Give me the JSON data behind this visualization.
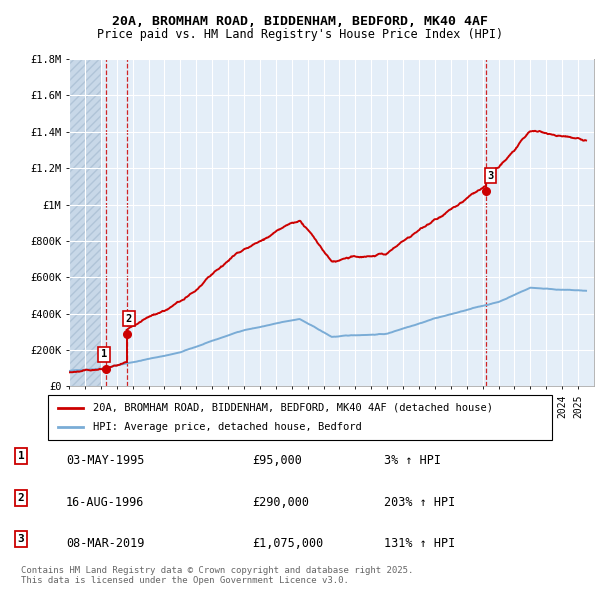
{
  "title_line1": "20A, BROMHAM ROAD, BIDDENHAM, BEDFORD, MK40 4AF",
  "title_line2": "Price paid vs. HM Land Registry's House Price Index (HPI)",
  "hpi_label": "HPI: Average price, detached house, Bedford",
  "property_label": "20A, BROMHAM ROAD, BIDDENHAM, BEDFORD, MK40 4AF (detached house)",
  "property_color": "#cc0000",
  "hpi_color": "#7aacd6",
  "ylim_min": 0,
  "ylim_max": 1800000,
  "yticks": [
    0,
    200000,
    400000,
    600000,
    800000,
    1000000,
    1200000,
    1400000,
    1600000,
    1800000
  ],
  "ytick_labels": [
    "£0",
    "£200K",
    "£400K",
    "£600K",
    "£800K",
    "£1M",
    "£1.2M",
    "£1.4M",
    "£1.6M",
    "£1.8M"
  ],
  "transactions": [
    {
      "date": 1995.34,
      "price": 95000,
      "label": "1"
    },
    {
      "date": 1996.62,
      "price": 290000,
      "label": "2"
    },
    {
      "date": 2019.18,
      "price": 1075000,
      "label": "3"
    }
  ],
  "table_rows": [
    {
      "num": "1",
      "date": "03-MAY-1995",
      "price": "£95,000",
      "change": "3% ↑ HPI"
    },
    {
      "num": "2",
      "date": "16-AUG-1996",
      "price": "£290,000",
      "change": "203% ↑ HPI"
    },
    {
      "num": "3",
      "date": "08-MAR-2019",
      "price": "£1,075,000",
      "change": "131% ↑ HPI"
    }
  ],
  "footer": "Contains HM Land Registry data © Crown copyright and database right 2025.\nThis data is licensed under the Open Government Licence v3.0.",
  "xmin": 1993,
  "xmax": 2026
}
